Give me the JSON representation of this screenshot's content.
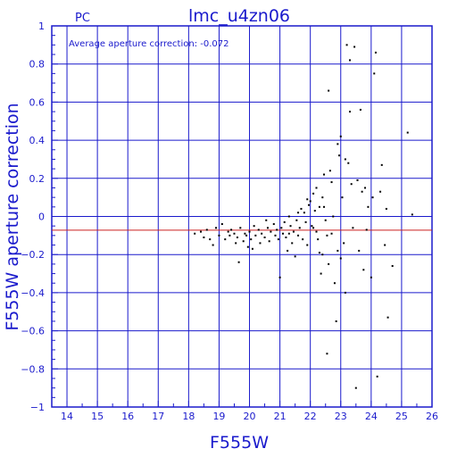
{
  "header": {
    "left_label": "PC",
    "title": "lmc_u4zn06"
  },
  "annotation": "Average aperture correction: -0.072",
  "chart_data": {
    "type": "scatter",
    "title": "lmc_u4zn06",
    "xlabel": "F555W",
    "ylabel": "F555W aperture correction",
    "xlim": [
      13.5,
      26
    ],
    "ylim": [
      -1,
      1
    ],
    "x_ticks": [
      14,
      15,
      16,
      17,
      18,
      19,
      20,
      21,
      22,
      23,
      24,
      25,
      26
    ],
    "y_ticks": [
      -1,
      -0.8,
      -0.6,
      -0.4,
      -0.2,
      0,
      0.2,
      0.4,
      0.6,
      0.8,
      1
    ],
    "x_tick_labels": [
      "14",
      "15",
      "16",
      "17",
      "18",
      "19",
      "20",
      "21",
      "22",
      "23",
      "24",
      "25",
      "26"
    ],
    "y_tick_labels": [
      "−1",
      "−0.8",
      "−0.6",
      "−0.4",
      "−0.2",
      "0",
      "0.2",
      "0.4",
      "0.6",
      "0.8",
      "1"
    ],
    "grid": true,
    "reference_line": {
      "y": -0.072,
      "color": "#cc2222"
    },
    "colors": {
      "axes": "#1a1acc",
      "points": "#000000"
    },
    "points": [
      [
        18.2,
        -0.09
      ],
      [
        18.4,
        -0.08
      ],
      [
        18.5,
        -0.11
      ],
      [
        18.6,
        -0.07
      ],
      [
        18.7,
        -0.12
      ],
      [
        18.8,
        -0.15
      ],
      [
        18.9,
        -0.06
      ],
      [
        19.0,
        -0.1
      ],
      [
        19.1,
        -0.04
      ],
      [
        19.2,
        -0.12
      ],
      [
        19.3,
        -0.08
      ],
      [
        19.35,
        -0.1
      ],
      [
        19.4,
        -0.07
      ],
      [
        19.5,
        -0.09
      ],
      [
        19.55,
        -0.14
      ],
      [
        19.6,
        -0.11
      ],
      [
        19.65,
        -0.24
      ],
      [
        19.7,
        -0.06
      ],
      [
        19.8,
        -0.13
      ],
      [
        19.85,
        -0.09
      ],
      [
        19.9,
        -0.1
      ],
      [
        19.95,
        -0.16
      ],
      [
        20.0,
        -0.08
      ],
      [
        20.05,
        -0.12
      ],
      [
        20.1,
        -0.17
      ],
      [
        20.15,
        -0.05
      ],
      [
        20.2,
        -0.1
      ],
      [
        20.3,
        -0.07
      ],
      [
        20.35,
        -0.14
      ],
      [
        20.4,
        -0.09
      ],
      [
        20.5,
        -0.11
      ],
      [
        20.55,
        -0.02
      ],
      [
        20.6,
        -0.06
      ],
      [
        20.65,
        -0.13
      ],
      [
        20.7,
        -0.08
      ],
      [
        20.8,
        -0.04
      ],
      [
        20.85,
        -0.1
      ],
      [
        20.9,
        -0.07
      ],
      [
        20.95,
        -0.12
      ],
      [
        21.0,
        -0.32
      ],
      [
        21.05,
        -0.06
      ],
      [
        21.1,
        -0.09
      ],
      [
        21.15,
        -0.03
      ],
      [
        21.2,
        -0.11
      ],
      [
        21.25,
        -0.18
      ],
      [
        21.3,
        0.0
      ],
      [
        21.35,
        -0.05
      ],
      [
        21.4,
        -0.14
      ],
      [
        21.45,
        -0.08
      ],
      [
        21.5,
        -0.21
      ],
      [
        21.55,
        -0.02
      ],
      [
        21.6,
        -0.1
      ],
      [
        21.65,
        -0.06
      ],
      [
        21.7,
        0.04
      ],
      [
        21.75,
        -0.12
      ],
      [
        21.8,
        0.02
      ],
      [
        21.85,
        -0.03
      ],
      [
        21.9,
        -0.15
      ],
      [
        21.95,
        0.06
      ],
      [
        22.0,
        0.08
      ],
      [
        22.05,
        -0.05
      ],
      [
        22.1,
        0.12
      ],
      [
        22.15,
        0.03
      ],
      [
        22.2,
        -0.08
      ],
      [
        22.25,
        -0.12
      ],
      [
        22.3,
        -0.19
      ],
      [
        22.35,
        -0.3
      ],
      [
        22.4,
        0.1
      ],
      [
        22.45,
        0.05
      ],
      [
        22.5,
        -0.02
      ],
      [
        22.55,
        -0.1
      ],
      [
        22.6,
        -0.25
      ],
      [
        22.65,
        0.24
      ],
      [
        22.7,
        0.18
      ],
      [
        22.75,
        0.0
      ],
      [
        22.8,
        -0.35
      ],
      [
        22.85,
        -0.55
      ],
      [
        22.9,
        -0.18
      ],
      [
        22.95,
        0.32
      ],
      [
        23.0,
        0.42
      ],
      [
        23.05,
        0.1
      ],
      [
        23.1,
        -0.14
      ],
      [
        23.15,
        -0.4
      ],
      [
        23.2,
        0.9
      ],
      [
        23.25,
        0.28
      ],
      [
        23.3,
        0.82
      ],
      [
        23.35,
        0.17
      ],
      [
        23.4,
        -0.06
      ],
      [
        23.45,
        0.89
      ],
      [
        23.5,
        -0.9
      ],
      [
        23.55,
        0.19
      ],
      [
        23.6,
        -0.18
      ],
      [
        23.65,
        0.56
      ],
      [
        23.7,
        0.13
      ],
      [
        23.75,
        -0.28
      ],
      [
        23.8,
        0.15
      ],
      [
        23.85,
        -0.07
      ],
      [
        23.9,
        0.05
      ],
      [
        24.0,
        -0.32
      ],
      [
        24.05,
        0.1
      ],
      [
        24.1,
        0.75
      ],
      [
        24.15,
        0.86
      ],
      [
        24.2,
        -0.84
      ],
      [
        24.3,
        0.13
      ],
      [
        24.35,
        0.27
      ],
      [
        24.45,
        -0.15
      ],
      [
        24.5,
        0.04
      ],
      [
        24.55,
        -0.53
      ],
      [
        24.7,
        -0.26
      ],
      [
        25.2,
        0.44
      ],
      [
        25.35,
        0.01
      ],
      [
        22.6,
        0.66
      ],
      [
        22.55,
        -0.72
      ],
      [
        23.3,
        0.55
      ],
      [
        22.9,
        0.38
      ],
      [
        22.3,
        0.05
      ],
      [
        22.1,
        -0.06
      ],
      [
        21.9,
        0.09
      ],
      [
        21.6,
        0.02
      ],
      [
        21.3,
        -0.09
      ],
      [
        22.4,
        -0.2
      ],
      [
        22.7,
        -0.09
      ],
      [
        23.0,
        -0.22
      ],
      [
        22.2,
        0.15
      ],
      [
        22.45,
        0.22
      ],
      [
        23.15,
        0.3
      ]
    ]
  }
}
